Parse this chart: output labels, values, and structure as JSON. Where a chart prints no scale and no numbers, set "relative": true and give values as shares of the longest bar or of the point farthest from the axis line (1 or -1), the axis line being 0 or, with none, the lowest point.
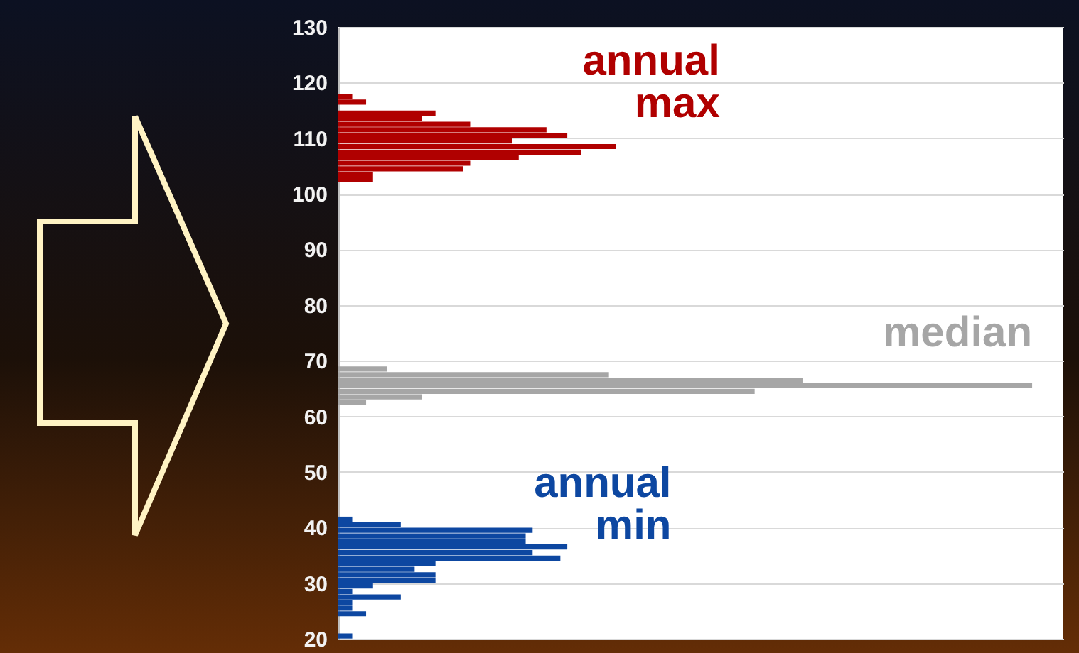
{
  "chart_data": {
    "type": "bar",
    "orientation": "horizontal",
    "relative": true,
    "ylim": [
      20,
      130
    ],
    "yticks": [
      20,
      30,
      40,
      50,
      60,
      70,
      80,
      90,
      100,
      110,
      120,
      130
    ],
    "grid": "y",
    "series": [
      {
        "name": "annual max",
        "color": "#b00000",
        "x": [
          102.5,
          103.5,
          104.5,
          105.5,
          106.5,
          107.5,
          108.5,
          109.5,
          110.5,
          111.5,
          112.5,
          113.5,
          114.5,
          115.5,
          116.5,
          117.5
        ],
        "values": [
          0.05,
          0.05,
          0.18,
          0.19,
          0.26,
          0.35,
          0.4,
          0.25,
          0.33,
          0.3,
          0.19,
          0.12,
          0.14,
          0,
          0.04,
          0.02
        ]
      },
      {
        "name": "median",
        "color": "#a6a6a6",
        "x": [
          62.5,
          63.5,
          64.5,
          65.5,
          66.5,
          67.5,
          68.5
        ],
        "values": [
          0.04,
          0.12,
          0.6,
          1,
          0.67,
          0.39,
          0.07
        ]
      },
      {
        "name": "annual min",
        "color": "#0d47a1",
        "x": [
          20.5,
          21.5,
          22.5,
          23.5,
          24.5,
          25.5,
          26.5,
          27.5,
          28.5,
          29.5,
          30.5,
          31.5,
          32.5,
          33.5,
          34.5,
          35.5,
          36.5,
          37.5,
          38.5,
          39.5,
          40.5,
          41.5
        ],
        "values": [
          0.02,
          0,
          0,
          0,
          0.04,
          0.02,
          0.02,
          0.09,
          0.02,
          0.05,
          0.14,
          0.14,
          0.11,
          0.14,
          0.32,
          0.28,
          0.33,
          0.27,
          0.27,
          0.28,
          0.09,
          0.02
        ]
      }
    ]
  }
}
